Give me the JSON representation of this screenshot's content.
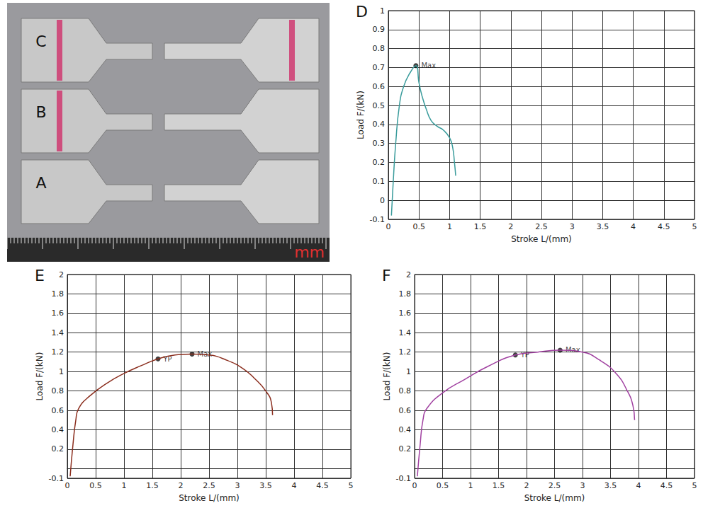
{
  "photo": {
    "labels": [
      "C",
      "B",
      "A"
    ],
    "scale_unit": "mm"
  },
  "chart_data": [
    {
      "type": "line",
      "panel": "D",
      "x_label": "Stroke L/(mm)",
      "y_label": "Load F/(kN)",
      "xlim": [
        0,
        5
      ],
      "ylim": [
        -0.1,
        1
      ],
      "xticks": [
        0,
        0.5,
        1,
        1.5,
        2,
        2.5,
        3,
        3.5,
        4,
        4.5,
        5
      ],
      "yticks": [
        -0.1,
        0,
        0.1,
        0.2,
        0.3,
        0.4,
        0.5,
        0.6,
        0.7,
        0.8,
        0.9,
        1
      ],
      "grid": true,
      "color": "#3a9c9c",
      "line_style": "solid",
      "x": [
        0.05,
        0.08,
        0.12,
        0.18,
        0.25,
        0.35,
        0.45,
        0.5,
        0.55,
        0.62,
        0.7,
        0.8,
        0.9,
        1.0,
        1.05,
        1.08,
        1.1
      ],
      "values": [
        -0.08,
        0.1,
        0.3,
        0.5,
        0.6,
        0.67,
        0.71,
        0.62,
        0.55,
        0.48,
        0.42,
        0.39,
        0.37,
        0.33,
        0.28,
        0.2,
        0.13
      ],
      "annotations": [
        {
          "x": 0.45,
          "y": 0.71,
          "label": "Max",
          "marker": "circle"
        }
      ]
    },
    {
      "type": "line",
      "panel": "E",
      "x_label": "Stroke L/(mm)",
      "y_label": "Load F/(kN)",
      "xlim": [
        0,
        5
      ],
      "ylim": [
        -0.1,
        2
      ],
      "xticks": [
        0,
        0.5,
        1,
        1.5,
        2,
        2.5,
        3,
        3.5,
        4,
        4.5,
        5
      ],
      "yticks": [
        -0.1,
        0.2,
        0.4,
        0.6,
        0.8,
        1,
        1.2,
        1.4,
        1.6,
        1.8,
        2
      ],
      "grid": true,
      "color": "#8b2e1e",
      "line_style": "solid",
      "x": [
        0.05,
        0.1,
        0.15,
        0.2,
        0.4,
        0.7,
        1.0,
        1.3,
        1.6,
        1.9,
        2.2,
        2.5,
        2.8,
        3.1,
        3.3,
        3.5,
        3.6,
        3.62
      ],
      "values": [
        -0.08,
        0.25,
        0.5,
        0.62,
        0.75,
        0.88,
        0.98,
        1.06,
        1.13,
        1.17,
        1.18,
        1.17,
        1.12,
        1.03,
        0.93,
        0.8,
        0.68,
        0.55
      ],
      "annotations": [
        {
          "x": 1.6,
          "y": 1.13,
          "label": "YP",
          "marker": "circle"
        },
        {
          "x": 2.2,
          "y": 1.18,
          "label": "Max",
          "marker": "circle"
        }
      ]
    },
    {
      "type": "line",
      "panel": "F",
      "x_label": "Stroke L/(mm)",
      "y_label": "Load F/(kN)",
      "xlim": [
        0,
        5
      ],
      "ylim": [
        -0.1,
        2
      ],
      "xticks": [
        0,
        0.5,
        1,
        1.5,
        2,
        2.5,
        3,
        3.5,
        4,
        4.5,
        5
      ],
      "yticks": [
        -0.1,
        0.2,
        0.4,
        0.6,
        0.8,
        1,
        1.2,
        1.4,
        1.6,
        1.8,
        2
      ],
      "grid": true,
      "color": "#a040a0",
      "line_style": "solid",
      "x": [
        0.05,
        0.1,
        0.15,
        0.22,
        0.5,
        0.9,
        1.3,
        1.8,
        2.2,
        2.6,
        3.0,
        3.3,
        3.6,
        3.8,
        3.9,
        3.93
      ],
      "values": [
        -0.08,
        0.25,
        0.5,
        0.62,
        0.78,
        0.92,
        1.05,
        1.17,
        1.2,
        1.22,
        1.2,
        1.12,
        0.98,
        0.8,
        0.65,
        0.5
      ],
      "annotations": [
        {
          "x": 1.8,
          "y": 1.17,
          "label": "YP",
          "marker": "circle"
        },
        {
          "x": 2.6,
          "y": 1.22,
          "label": "Max",
          "marker": "circle"
        }
      ]
    }
  ]
}
